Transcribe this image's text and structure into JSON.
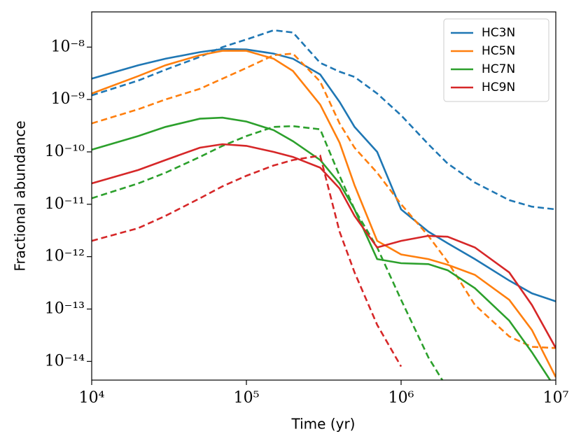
{
  "chart_data": {
    "type": "line",
    "xlabel": "Time (yr)",
    "ylabel": "Fractional abundance",
    "xlog": true,
    "ylog": true,
    "legend": "upper right",
    "x": [
      10000,
      20000,
      30000,
      50000,
      70000,
      100000,
      150000,
      200000,
      300000,
      400000,
      500000,
      700000,
      1000000,
      1500000,
      2000000,
      3000000,
      5000000,
      7000000,
      10000000
    ],
    "xlim": [
      10000,
      10000000
    ],
    "xticks": [
      {
        "value": 10000,
        "label": "10⁴"
      },
      {
        "value": 100000,
        "label": "10⁵"
      },
      {
        "value": 1000000,
        "label": "10⁶"
      },
      {
        "value": 10000000,
        "label": "10⁷"
      }
    ],
    "ylim": [
      4.4e-15,
      4.7e-08
    ],
    "yticks": [
      {
        "value": 1e-14,
        "label": "10⁻¹⁴"
      },
      {
        "value": 1e-13,
        "label": "10⁻¹³"
      },
      {
        "value": 1e-12,
        "label": "10⁻¹²"
      },
      {
        "value": 1e-11,
        "label": "10⁻¹¹"
      },
      {
        "value": 1e-10,
        "label": "10⁻¹⁰"
      },
      {
        "value": 1e-09,
        "label": "10⁻⁹"
      },
      {
        "value": 1e-08,
        "label": "10⁻⁸"
      }
    ],
    "series": [
      {
        "name": "HC3N",
        "color": "#1f77b4",
        "values": [
          2.5e-09,
          4.5e-09,
          6e-09,
          8e-09,
          9.2e-09,
          9e-09,
          7.5e-09,
          6e-09,
          3e-09,
          9e-10,
          3e-10,
          1e-10,
          8e-12,
          3e-12,
          1.8e-12,
          9e-13,
          3.5e-13,
          2e-13,
          1.4e-13
        ],
        "values_dashed": [
          1.2e-09,
          2.3e-09,
          3.7e-09,
          6.5e-09,
          1e-08,
          1.4e-08,
          2.1e-08,
          1.9e-08,
          5e-09,
          3.4e-09,
          2.7e-09,
          1.3e-09,
          5e-10,
          1.4e-10,
          6e-11,
          2.6e-11,
          1.2e-11,
          9e-12,
          8e-12
        ]
      },
      {
        "name": "HC5N",
        "color": "#ff7f0e",
        "values": [
          1.3e-09,
          2.8e-09,
          4.5e-09,
          7e-09,
          8.5e-09,
          8.5e-09,
          6e-09,
          3.5e-09,
          8e-10,
          1.5e-10,
          2.3e-11,
          2e-12,
          1.1e-12,
          9e-13,
          7e-13,
          4.5e-13,
          1.5e-13,
          4e-14,
          5e-15
        ],
        "values_dashed": [
          3.5e-10,
          6.5e-10,
          1e-09,
          1.6e-09,
          2.5e-09,
          4e-09,
          7e-09,
          7.5e-09,
          2.2e-09,
          3.5e-10,
          1.2e-10,
          4e-11,
          1e-11,
          2.5e-12,
          8e-13,
          1.2e-13,
          3e-14,
          1.9e-14,
          1.8e-14
        ]
      },
      {
        "name": "HC7N",
        "color": "#2ca02c",
        "values": [
          1.1e-10,
          2e-10,
          3e-10,
          4.3e-10,
          4.5e-10,
          3.8e-10,
          2.6e-10,
          1.6e-10,
          7e-11,
          2.5e-11,
          8e-12,
          9e-13,
          7.5e-13,
          7.2e-13,
          5.5e-13,
          2.5e-13,
          6e-14,
          1.5e-14,
          3e-15
        ],
        "values_dashed": [
          1.3e-11,
          2.5e-11,
          4e-11,
          8e-11,
          1.3e-10,
          2e-10,
          3e-10,
          3.1e-10,
          2.7e-10,
          3.5e-11,
          8e-12,
          1.5e-12,
          1.5e-13,
          1.2e-14,
          3e-15,
          null,
          null,
          null,
          null
        ]
      },
      {
        "name": "HC9N",
        "color": "#d62728",
        "values": [
          2.5e-11,
          4.5e-11,
          7e-11,
          1.2e-10,
          1.4e-10,
          1.3e-10,
          1e-10,
          8e-11,
          5e-11,
          2e-11,
          6e-12,
          1.5e-12,
          2e-12,
          2.5e-12,
          2.4e-12,
          1.5e-12,
          5e-13,
          1.2e-13,
          1.8e-14
        ],
        "values_dashed": [
          2e-12,
          3.5e-12,
          6e-12,
          1.3e-11,
          2.2e-11,
          3.5e-11,
          5.5e-11,
          7e-11,
          8.5e-11,
          3e-12,
          5e-13,
          5e-14,
          8e-15,
          null,
          null,
          null,
          null,
          null,
          null
        ]
      }
    ]
  }
}
